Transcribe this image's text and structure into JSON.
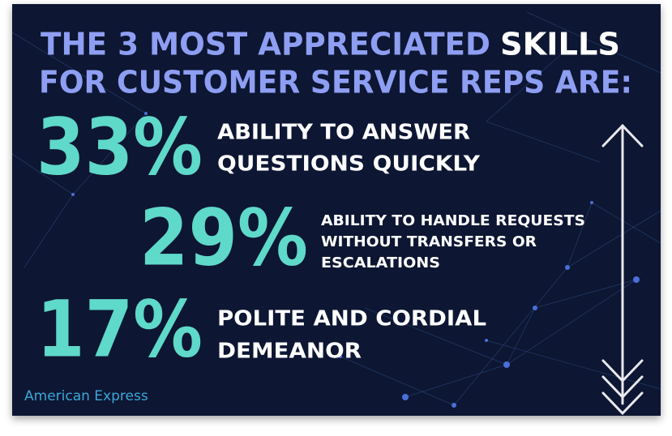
{
  "title": {
    "part1": "THE 3 MOST APPRECIATED",
    "part2": "SKILLS",
    "part3": "FOR CUSTOMER SERVICE REPS ARE:"
  },
  "stats": [
    {
      "value": "33%",
      "lines": [
        "ABILITY TO ANSWER",
        "QUESTIONS QUICKLY"
      ]
    },
    {
      "value": "29%",
      "lines": [
        "ABILITY TO HANDLE REQUESTS",
        "WITHOUT TRANSFERS OR",
        "ESCALATIONS"
      ]
    },
    {
      "value": "17%",
      "lines": [
        "POLITE AND CORDIAL",
        "DEMEANOR"
      ]
    }
  ],
  "source": "American Express"
}
